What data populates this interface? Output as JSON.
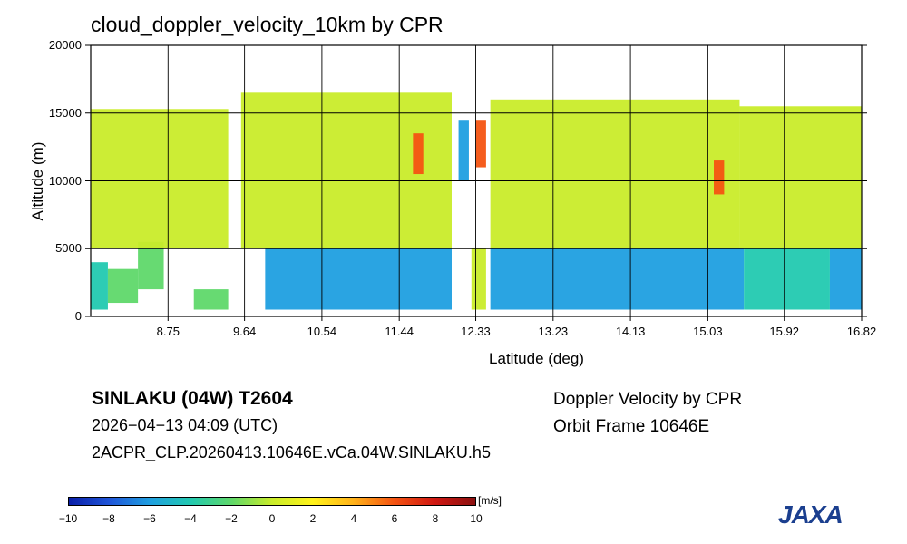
{
  "chart_data": {
    "type": "heatmap",
    "title": "cloud_doppler_velocity_10km by CPR",
    "xlabel": "Latitude (deg)",
    "ylabel": "Altitude (m)",
    "x_ticks": [
      "8.75",
      "9.64",
      "10.54",
      "11.44",
      "12.33",
      "13.23",
      "14.13",
      "15.03",
      "15.92",
      "16.82"
    ],
    "y_ticks": [
      "0",
      "5000",
      "10000",
      "15000",
      "20000"
    ],
    "xlim": [
      7.85,
      16.82
    ],
    "ylim": [
      0,
      20000
    ],
    "colorbar": {
      "min": -10,
      "max": 10,
      "unit": "[m/s]",
      "ticks": [
        "−10",
        "−8",
        "−6",
        "−4",
        "−2",
        "0",
        "2",
        "4",
        "6",
        "8",
        "10"
      ],
      "colors": [
        "#0a1fa8",
        "#1f55d8",
        "#1f9fe0",
        "#22c9b0",
        "#5fd86a",
        "#c9ec2a",
        "#fff21a",
        "#ffb21a",
        "#f45412",
        "#d01812",
        "#8b1010"
      ]
    },
    "regions": [
      {
        "lat": [
          7.85,
          8.05
        ],
        "alt": [
          500,
          4000
        ],
        "value": -3.5
      },
      {
        "lat": [
          8.05,
          8.4
        ],
        "alt": [
          1000,
          3500
        ],
        "value": -3.0
      },
      {
        "lat": [
          8.4,
          8.7
        ],
        "alt": [
          2000,
          5500
        ],
        "value": -3.0
      },
      {
        "lat": [
          9.05,
          9.45
        ],
        "alt": [
          500,
          2000
        ],
        "value": -2.5
      },
      {
        "lat": [
          9.88,
          12.05
        ],
        "alt": [
          500,
          5000
        ],
        "value": -7.0
      },
      {
        "lat": [
          12.28,
          12.45
        ],
        "alt": [
          500,
          5000
        ],
        "value": 0.5
      },
      {
        "lat": [
          12.5,
          15.45
        ],
        "alt": [
          500,
          5000
        ],
        "value": -6.5
      },
      {
        "lat": [
          15.45,
          16.45
        ],
        "alt": [
          500,
          5000
        ],
        "value": -4.5
      },
      {
        "lat": [
          16.45,
          16.82
        ],
        "alt": [
          500,
          5000
        ],
        "value": -6.0
      },
      {
        "lat": [
          7.85,
          9.45
        ],
        "alt": [
          5000,
          15300
        ],
        "value": -0.5
      },
      {
        "lat": [
          9.6,
          12.05
        ],
        "alt": [
          5000,
          16500
        ],
        "value": -0.5
      },
      {
        "lat": [
          12.5,
          15.4
        ],
        "alt": [
          5000,
          16000
        ],
        "value": -0.5
      },
      {
        "lat": [
          15.4,
          16.82
        ],
        "alt": [
          5000,
          15500
        ],
        "value": -1.0
      },
      {
        "lat": [
          11.6,
          11.72
        ],
        "alt": [
          10500,
          13500
        ],
        "value": 6.0
      },
      {
        "lat": [
          12.13,
          12.25
        ],
        "alt": [
          10000,
          14500
        ],
        "value": -7.0
      },
      {
        "lat": [
          12.33,
          12.45
        ],
        "alt": [
          11000,
          14500
        ],
        "value": 5.5
      },
      {
        "lat": [
          15.1,
          15.22
        ],
        "alt": [
          9000,
          11500
        ],
        "value": 6.0
      }
    ]
  },
  "storm": {
    "title": "SINLAKU (04W) T2604",
    "time": "2026−04−13 04:09 (UTC)",
    "file": "2ACPR_CLP.20260413.10646E.vCa.04W.SINLAKU.h5"
  },
  "product": {
    "name": "Doppler Velocity by CPR",
    "orbit": "Orbit Frame 10646E"
  },
  "logo": {
    "text": "JAXA",
    "color": "#1b3f8f"
  }
}
